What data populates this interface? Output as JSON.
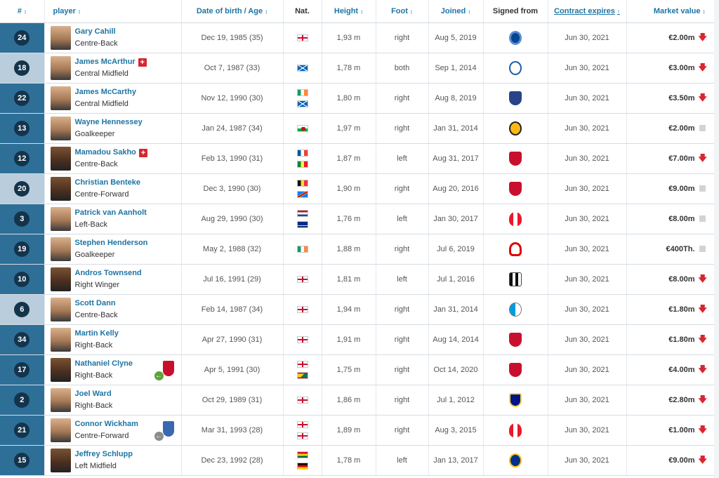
{
  "headers": {
    "num": "#",
    "player": "player",
    "dob": "Date of birth / Age",
    "nat": "Nat.",
    "height": "Height",
    "foot": "Foot",
    "joined": "Joined",
    "signed_from": "Signed from",
    "contract": "Contract expires",
    "market_value": "Market value"
  },
  "sort_icons": {
    "sortable": "↕",
    "active": "↑"
  },
  "players": [
    {
      "num": "24",
      "name": "Gary Cahill",
      "pos": "Centre-Back",
      "dob": "Dec 19, 1985 (35)",
      "nat": [
        "england"
      ],
      "height": "1,93 m",
      "foot": "right",
      "joined": "Aug 5, 2019",
      "club_icon": "chelsea-crest-icon",
      "contract": "Jun 30, 2021",
      "mv": "€2.00m",
      "trend": "down"
    },
    {
      "num": "18",
      "name": "James McArthur",
      "pos": "Central Midfield",
      "injury": "+",
      "dob": "Oct 7, 1987 (33)",
      "nat": [
        "scotland"
      ],
      "height": "1,78 m",
      "foot": "both",
      "joined": "Sep 1, 2014",
      "club_icon": "wigan-crest-icon",
      "contract": "Jun 30, 2021",
      "mv": "€3.00m",
      "trend": "down"
    },
    {
      "num": "22",
      "name": "James McCarthy",
      "pos": "Central Midfield",
      "dob": "Nov 12, 1990 (30)",
      "nat": [
        "ireland",
        "scotland"
      ],
      "height": "1,80 m",
      "foot": "right",
      "joined": "Aug 8, 2019",
      "club_icon": "everton-crest-icon",
      "contract": "Jun 30, 2021",
      "mv": "€3.50m",
      "trend": "down"
    },
    {
      "num": "13",
      "name": "Wayne Hennessey",
      "pos": "Goalkeeper",
      "dob": "Jan 24, 1987 (34)",
      "nat": [
        "wales"
      ],
      "height": "1,97 m",
      "foot": "right",
      "joined": "Jan 31, 2014",
      "club_icon": "wolves-crest-icon",
      "contract": "Jun 30, 2021",
      "mv": "€2.00m",
      "trend": "same"
    },
    {
      "num": "12",
      "name": "Mamadou Sakho",
      "pos": "Centre-Back",
      "injury": "+",
      "dob": "Feb 13, 1990 (31)",
      "nat": [
        "france",
        "senegal"
      ],
      "height": "1,87 m",
      "foot": "left",
      "joined": "Aug 31, 2017",
      "club_icon": "liverpool-crest-icon",
      "contract": "Jun 30, 2021",
      "mv": "€7.00m",
      "trend": "down"
    },
    {
      "num": "20",
      "name": "Christian Benteke",
      "pos": "Centre-Forward",
      "dob": "Dec 3, 1990 (30)",
      "nat": [
        "belgium",
        "dr-congo"
      ],
      "height": "1,90 m",
      "foot": "right",
      "joined": "Aug 20, 2016",
      "club_icon": "liverpool-crest-icon",
      "contract": "Jun 30, 2021",
      "mv": "€9.00m",
      "trend": "same"
    },
    {
      "num": "3",
      "name": "Patrick van Aanholt",
      "pos": "Left-Back",
      "dob": "Aug 29, 1990 (30)",
      "nat": [
        "netherlands",
        "curacao"
      ],
      "height": "1,76 m",
      "foot": "left",
      "joined": "Jan 30, 2017",
      "club_icon": "sunderland-crest-icon",
      "contract": "Jun 30, 2021",
      "mv": "€8.00m",
      "trend": "same"
    },
    {
      "num": "19",
      "name": "Stephen Henderson",
      "pos": "Goalkeeper",
      "dob": "May 2, 1988 (32)",
      "nat": [
        "ireland"
      ],
      "height": "1,88 m",
      "foot": "right",
      "joined": "Jul 6, 2019",
      "club_icon": "nottingham-forest-crest-icon",
      "contract": "Jun 30, 2021",
      "mv": "€400Th.",
      "trend": "same"
    },
    {
      "num": "10",
      "name": "Andros Townsend",
      "pos": "Right Winger",
      "dob": "Jul 16, 1991 (29)",
      "nat": [
        "england"
      ],
      "height": "1,81 m",
      "foot": "left",
      "joined": "Jul 1, 2016",
      "club_icon": "newcastle-crest-icon",
      "contract": "Jun 30, 2021",
      "mv": "€8.00m",
      "trend": "down"
    },
    {
      "num": "6",
      "name": "Scott Dann",
      "pos": "Centre-Back",
      "dob": "Feb 14, 1987 (34)",
      "nat": [
        "england"
      ],
      "height": "1,94 m",
      "foot": "right",
      "joined": "Jan 31, 2014",
      "club_icon": "blackburn-crest-icon",
      "contract": "Jun 30, 2021",
      "mv": "€1.80m",
      "trend": "down"
    },
    {
      "num": "34",
      "name": "Martin Kelly",
      "pos": "Right-Back",
      "dob": "Apr 27, 1990 (31)",
      "nat": [
        "england"
      ],
      "height": "1,91 m",
      "foot": "right",
      "joined": "Aug 14, 2014",
      "club_icon": "liverpool-crest-icon",
      "contract": "Jun 30, 2021",
      "mv": "€1.80m",
      "trend": "down"
    },
    {
      "num": "17",
      "name": "Nathaniel Clyne",
      "pos": "Right-Back",
      "loan": "liverpool",
      "dob": "Apr 5, 1991 (30)",
      "nat": [
        "england",
        "grenada"
      ],
      "height": "1,75 m",
      "foot": "right",
      "joined": "Oct 14, 2020",
      "club_icon": "liverpool-crest-icon",
      "contract": "Jun 30, 2021",
      "mv": "€4.00m",
      "trend": "down"
    },
    {
      "num": "2",
      "name": "Joel Ward",
      "pos": "Right-Back",
      "dob": "Oct 29, 1989 (31)",
      "nat": [
        "england"
      ],
      "height": "1,86 m",
      "foot": "right",
      "joined": "Jul 1, 2012",
      "club_icon": "portsmouth-crest-icon",
      "contract": "Jun 30, 2021",
      "mv": "€2.80m",
      "trend": "down"
    },
    {
      "num": "21",
      "name": "Connor Wickham",
      "pos": "Centre-Forward",
      "loan": "sheffield-wednesday",
      "dob": "Mar 31, 1993 (28)",
      "nat": [
        "england",
        "england"
      ],
      "height": "1,89 m",
      "foot": "right",
      "joined": "Aug 3, 2015",
      "club_icon": "sunderland-crest-icon",
      "contract": "Jun 30, 2021",
      "mv": "€1.00m",
      "trend": "down"
    },
    {
      "num": "15",
      "name": "Jeffrey Schlupp",
      "pos": "Left Midfield",
      "dob": "Dec 23, 1992 (28)",
      "nat": [
        "ghana",
        "germany"
      ],
      "height": "1,78 m",
      "foot": "left",
      "joined": "Jan 13, 2017",
      "club_icon": "leicester-crest-icon",
      "contract": "Jun 30, 2021",
      "mv": "€9.00m",
      "trend": "down"
    }
  ],
  "colors": {
    "link_blue": "#1d75a3",
    "number_cell_dark": "#2e6f98",
    "number_cell_light": "#b9cddc",
    "number_badge": "#14344c",
    "trend_down": "#d72630",
    "trend_same": "#d3d3d3"
  }
}
